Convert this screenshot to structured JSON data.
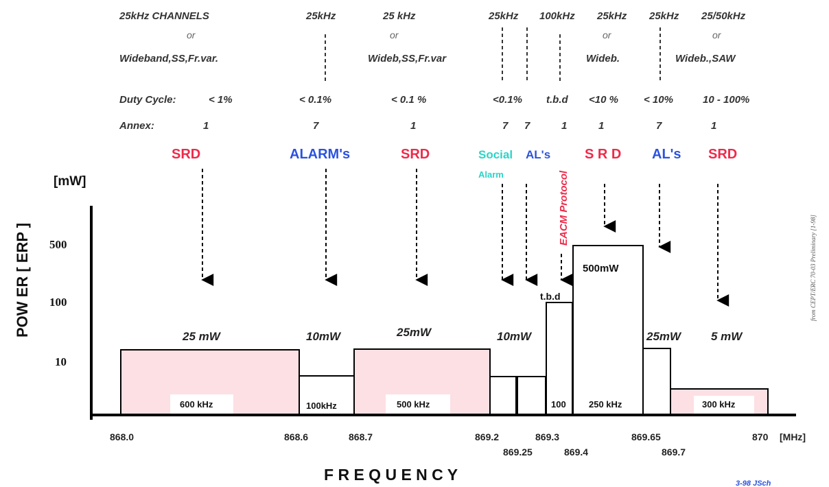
{
  "colors": {
    "srd": "#ee2a4a",
    "alarm": "#2a52e0",
    "social": "#2ad4c8",
    "fill_pink": "#fde0e4",
    "eacm": "#ee2a4a"
  },
  "headers": {
    "ch1": "25kHz CHANNELS",
    "ch1_or": "or",
    "ch1_b": "Wideband,SS,Fr.var.",
    "ch2": "25kHz",
    "ch3": "25 kHz",
    "ch3_or": "or",
    "ch3_b": "Wideb,SS,Fr.var",
    "ch4": "25kHz",
    "ch5": "100kHz",
    "ch6": "25kHz",
    "ch6_or": "or",
    "ch6_b": "Wideb.",
    "ch7": "25kHz",
    "ch8": "25/50kHz",
    "ch8_or": "or",
    "ch8_b": "Wideb.,SAW"
  },
  "duty": {
    "label": "Duty Cycle:",
    "v1": "< 1%",
    "v2": "< 0.1%",
    "v3": "< 0.1 %",
    "v4": "<0.1%",
    "v5": "t.b.d",
    "v6": "<10 %",
    "v7": "< 10%",
    "v8": "10 - 100%"
  },
  "annex": {
    "label": "Annex:",
    "v1": "1",
    "v2": "7",
    "v3": "1",
    "v4a": "7",
    "v4b": "7",
    "v5": "1",
    "v6": "1",
    "v7": "7",
    "v8": "1"
  },
  "tags": {
    "srd1": "SRD",
    "alarms": "ALARM's",
    "srd2": "SRD",
    "social": "Social",
    "social_sub": "Alarm",
    "als1": "AL's",
    "eacm": "EACM Protocol",
    "srd3": "S R D",
    "als2": "AL's",
    "srd4": "SRD"
  },
  "y_axis": {
    "unit": "[mW]",
    "label": "POW ER [ ERP ]",
    "ticks": [
      "500",
      "100",
      "10"
    ]
  },
  "x_axis": {
    "label": "F R E Q U E N C Y",
    "unit": "[MHz]",
    "ticks": [
      "868.0",
      "868.6",
      "868.7",
      "869.2",
      "869.25",
      "869.3",
      "869.4",
      "869.65",
      "869.7",
      "870"
    ]
  },
  "bands": [
    {
      "from": 868.0,
      "to": 868.6,
      "power": "25 mW",
      "width": "600 kHz"
    },
    {
      "from": 868.6,
      "to": 868.7,
      "power": "10mW",
      "width": "100kHz"
    },
    {
      "from": 868.7,
      "to": 869.2,
      "power": "25mW",
      "width": "500 kHz"
    },
    {
      "from": 869.2,
      "to": 869.3,
      "power": "10mW",
      "width": ""
    },
    {
      "from": 869.3,
      "to": 869.4,
      "power": "t.b.d",
      "width": "100"
    },
    {
      "from": 869.4,
      "to": 869.65,
      "power": "500mW",
      "width": "250 kHz"
    },
    {
      "from": 869.65,
      "to": 869.7,
      "power": "25mW",
      "width": ""
    },
    {
      "from": 869.7,
      "to": 870.0,
      "power": "5 mW",
      "width": "300 kHz"
    }
  ],
  "credit": {
    "side": "from CEPT/ERC 70-03 Preliminary [1-98]",
    "author": "3-98 JSch"
  }
}
